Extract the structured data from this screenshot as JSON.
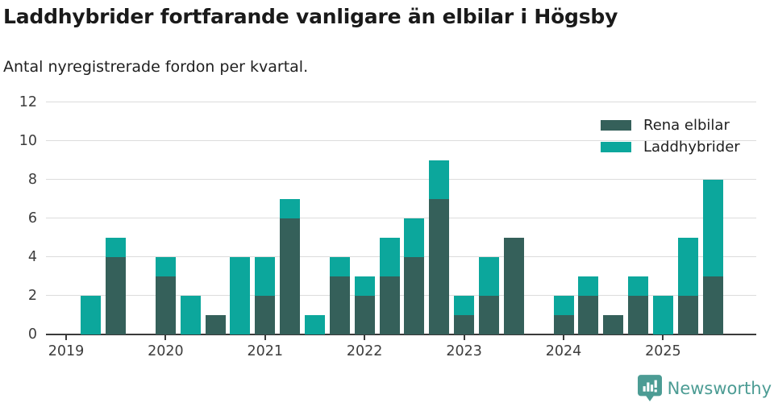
{
  "title": "Laddhybrider fortfarande vanligare än elbilar i Högsby",
  "subtitle": "Antal nyregistrerade fordon per kvartal.",
  "colors": {
    "electric": "#35605a",
    "hybrid": "#0ca79c",
    "grid": "#dcdcdc",
    "axis": "#3a3a3a",
    "brand": "#4c9c94"
  },
  "legend": [
    {
      "label": "Rena elbilar",
      "color": "#35605a"
    },
    {
      "label": "Laddhybrider",
      "color": "#0ca79c"
    }
  ],
  "chart_data": {
    "type": "bar",
    "stacked": true,
    "title": "Laddhybrider fortfarande vanligare än elbilar i Högsby",
    "subtitle": "Antal nyregistrerade fordon per kvartal.",
    "xlabel": "",
    "ylabel": "Antal nyregistrerade fordon per kvartal",
    "x": [
      "2019 Q1",
      "2019 Q2",
      "2019 Q3",
      "2019 Q4",
      "2020 Q1",
      "2020 Q2",
      "2020 Q3",
      "2020 Q4",
      "2021 Q1",
      "2021 Q2",
      "2021 Q3",
      "2021 Q4",
      "2022 Q1",
      "2022 Q2",
      "2022 Q3",
      "2022 Q4",
      "2023 Q1",
      "2023 Q2",
      "2023 Q3",
      "2023 Q4",
      "2024 Q1",
      "2024 Q2",
      "2024 Q3",
      "2024 Q4",
      "2025 Q1",
      "2025 Q2",
      "2025 Q3"
    ],
    "series": [
      {
        "name": "Rena elbilar",
        "values": [
          0,
          0,
          4,
          0,
          3,
          0,
          1,
          0,
          2,
          6,
          0,
          3,
          2,
          3,
          4,
          7,
          1,
          2,
          5,
          0,
          1,
          2,
          1,
          2,
          0,
          2,
          3
        ]
      },
      {
        "name": "Laddhybrider",
        "values": [
          0,
          2,
          1,
          0,
          1,
          2,
          0,
          4,
          2,
          1,
          1,
          1,
          1,
          2,
          2,
          2,
          1,
          2,
          0,
          0,
          1,
          1,
          0,
          1,
          2,
          3,
          5
        ]
      }
    ],
    "totals": [
      0,
      2,
      5,
      0,
      4,
      2,
      1,
      4,
      4,
      7,
      1,
      4,
      3,
      5,
      6,
      9,
      2,
      4,
      5,
      0,
      2,
      3,
      1,
      3,
      2,
      5,
      8
    ],
    "yticks": [
      0,
      2,
      4,
      6,
      8,
      10,
      12
    ],
    "ylim": [
      0,
      12
    ],
    "xticks_years": [
      "2019",
      "2020",
      "2021",
      "2022",
      "2023",
      "2024",
      "2025"
    ],
    "grid": true,
    "legend_position": "top-right"
  },
  "footer": {
    "brand": "Newsworthy"
  }
}
